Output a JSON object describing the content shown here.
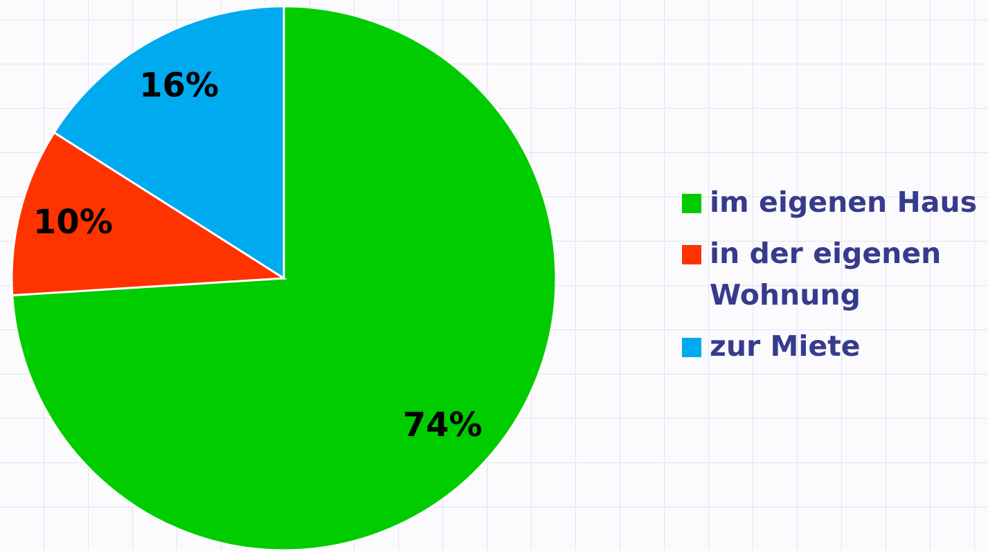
{
  "chart_data": {
    "type": "pie",
    "categories": [
      "im eigenen Haus",
      "in der eigenen Wohnung",
      "zur Miete"
    ],
    "values": [
      74,
      10,
      16
    ],
    "value_labels": [
      "74%",
      "10%",
      "16%"
    ],
    "colors": [
      "#00cc00",
      "#ff3300",
      "#00aaee"
    ],
    "legend": "right"
  }
}
